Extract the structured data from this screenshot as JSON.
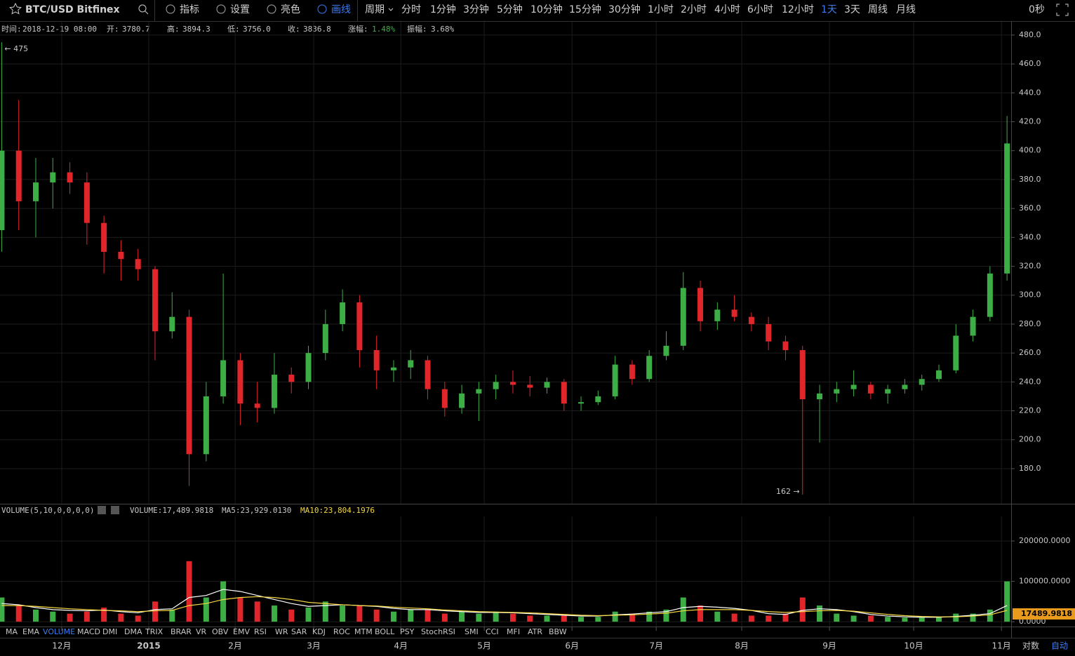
{
  "toolbar": {
    "symbol": "BTC/USD Bitfinex",
    "tools": [
      "指标",
      "设置",
      "亮色",
      "画线"
    ],
    "period_label": "周期",
    "periods": [
      "分时",
      "1分钟",
      "3分钟",
      "5分钟",
      "10分钟",
      "15分钟",
      "30分钟",
      "1小时",
      "2小时",
      "4小时",
      "6小时",
      "12小时",
      "1天",
      "3天",
      "周线",
      "月线"
    ],
    "active_period": "1天",
    "countdown": "0秒"
  },
  "info": [
    {
      "label": "时间:",
      "value": "2018-12-19 08:00"
    },
    {
      "label": "开:",
      "value": "3780.7"
    },
    {
      "label": "高:",
      "value": "3894.3"
    },
    {
      "label": "低:",
      "value": "3756.0"
    },
    {
      "label": "收:",
      "value": "3836.8"
    },
    {
      "label": "涨幅:",
      "value": "1.48%"
    },
    {
      "label": "振幅:",
      "value": "3.68%"
    }
  ],
  "chart_data": {
    "type": "candlestick",
    "up_color": "#3dae45",
    "down_color": "#e0262b",
    "grid": true,
    "categories": [
      null,
      null,
      null,
      null,
      null,
      null,
      null,
      null,
      null,
      null,
      null,
      null,
      null,
      null,
      null,
      null,
      null,
      null,
      null,
      null,
      null,
      null,
      null,
      null,
      null,
      null,
      null,
      null,
      null,
      null,
      null,
      null,
      null,
      null,
      null,
      null,
      null,
      null,
      null,
      null,
      null,
      null,
      null,
      null,
      null,
      null,
      null,
      null,
      null,
      null,
      null,
      null,
      null,
      null,
      null,
      null,
      null,
      null,
      null,
      null
    ],
    "open": [
      345,
      400,
      365,
      378,
      385,
      378,
      350,
      330,
      325,
      318,
      275,
      285,
      190,
      230,
      255,
      225,
      222,
      245,
      240,
      260,
      280,
      295,
      262,
      248,
      250,
      255,
      235,
      222,
      232,
      235,
      240,
      238,
      236,
      240,
      225,
      226,
      230,
      252,
      242,
      258,
      265,
      305,
      282,
      290,
      285,
      280,
      268,
      262,
      228,
      232,
      235,
      238,
      232,
      235,
      238,
      242,
      248,
      272,
      285,
      315
    ],
    "high": [
      475,
      435,
      395,
      395,
      392,
      385,
      355,
      338,
      332,
      320,
      302,
      290,
      240,
      315,
      260,
      240,
      260,
      250,
      265,
      290,
      304,
      300,
      272,
      255,
      262,
      258,
      240,
      238,
      240,
      245,
      248,
      244,
      243,
      242,
      230,
      234,
      258,
      255,
      262,
      275,
      316,
      310,
      295,
      300,
      288,
      285,
      272,
      265,
      238,
      240,
      248,
      240,
      238,
      242,
      245,
      252,
      280,
      290,
      320,
      424
    ],
    "low": [
      330,
      345,
      340,
      360,
      370,
      335,
      315,
      310,
      310,
      255,
      270,
      168,
      185,
      225,
      210,
      212,
      218,
      232,
      235,
      255,
      275,
      250,
      235,
      240,
      242,
      228,
      216,
      218,
      213,
      228,
      232,
      230,
      232,
      220,
      220,
      224,
      228,
      238,
      240,
      255,
      262,
      275,
      276,
      282,
      275,
      262,
      255,
      162,
      198,
      226,
      230,
      228,
      225,
      232,
      234,
      240,
      246,
      268,
      282,
      310
    ],
    "close": [
      400,
      365,
      378,
      385,
      378,
      350,
      330,
      325,
      318,
      275,
      285,
      190,
      230,
      255,
      225,
      222,
      245,
      240,
      260,
      280,
      295,
      262,
      248,
      250,
      255,
      235,
      222,
      232,
      235,
      240,
      238,
      236,
      240,
      225,
      226,
      230,
      252,
      242,
      258,
      265,
      305,
      282,
      290,
      285,
      280,
      268,
      262,
      228,
      232,
      235,
      238,
      232,
      235,
      238,
      242,
      248,
      272,
      285,
      315,
      405
    ],
    "xlim": [
      -0.1,
      59.2
    ],
    "xticks": [
      {
        "value": 3.52,
        "label": "12月"
      },
      {
        "value": 8.63,
        "label": "2015"
      },
      {
        "value": 13.7,
        "label": "2月"
      },
      {
        "value": 18.31,
        "label": "3月"
      },
      {
        "value": 23.42,
        "label": "4月"
      },
      {
        "value": 28.32,
        "label": "5月"
      },
      {
        "value": 33.47,
        "label": "6月"
      },
      {
        "value": 38.41,
        "label": "7月"
      },
      {
        "value": 43.43,
        "label": "8月"
      },
      {
        "value": 48.58,
        "label": "9月"
      },
      {
        "value": 53.52,
        "label": "10月"
      },
      {
        "value": 58.67,
        "label": "11月"
      }
    ],
    "ylim": [
      155.7,
      488.7
    ],
    "yticks": [
      {
        "value": 180,
        "label": "180.0"
      },
      {
        "value": 200,
        "label": "200.0"
      },
      {
        "value": 220,
        "label": "220.0"
      },
      {
        "value": 240,
        "label": "240.0"
      },
      {
        "value": 260,
        "label": "260.0"
      },
      {
        "value": 280,
        "label": "280.0"
      },
      {
        "value": 300,
        "label": "300.0"
      },
      {
        "value": 320,
        "label": "320.0"
      },
      {
        "value": 340,
        "label": "340.0"
      },
      {
        "value": 360,
        "label": "360.0"
      },
      {
        "value": 380,
        "label": "380.0"
      },
      {
        "value": 400,
        "label": "400.0"
      },
      {
        "value": 420,
        "label": "420.0"
      },
      {
        "value": 440,
        "label": "440.0"
      },
      {
        "value": 460,
        "label": "460.0"
      },
      {
        "value": 480,
        "label": "480.0"
      }
    ],
    "annotations": {
      "high": "← 475",
      "low": "162 →"
    }
  },
  "volume_chart": {
    "type": "bar",
    "header": "VOLUME(5,10,0,0,0,0)",
    "current": "VOLUME:17,489.9818",
    "ma5_label": "MA5:23,929.0130",
    "ma10_label": "MA10:23,804.1976",
    "last_label": "17489.9818",
    "values": [
      60000,
      40000,
      30000,
      25000,
      20000,
      25000,
      35000,
      20000,
      15000,
      50000,
      30000,
      150000,
      60000,
      100000,
      60000,
      50000,
      40000,
      30000,
      35000,
      50000,
      40000,
      40000,
      30000,
      25000,
      30000,
      30000,
      20000,
      25000,
      20000,
      25000,
      20000,
      15000,
      15000,
      15000,
      12000,
      12000,
      25000,
      20000,
      25000,
      30000,
      60000,
      40000,
      25000,
      20000,
      15000,
      15000,
      20000,
      60000,
      40000,
      20000,
      15000,
      15000,
      12000,
      10000,
      10000,
      12000,
      20000,
      20000,
      30000,
      100000
    ],
    "series": [
      {
        "name": "MA5",
        "color": "#ffffff",
        "values": [
          45000,
          42000,
          35000,
          30000,
          28000,
          27000,
          29000,
          25000,
          22000,
          30000,
          32000,
          60000,
          65000,
          80000,
          75000,
          65000,
          55000,
          45000,
          38000,
          40000,
          42000,
          40000,
          38000,
          33000,
          30000,
          30000,
          27000,
          25000,
          23000,
          23000,
          22000,
          20000,
          18000,
          16000,
          14000,
          14000,
          17000,
          19000,
          22000,
          25000,
          35000,
          38000,
          36000,
          33000,
          28000,
          20000,
          18000,
          28000,
          32000,
          30000,
          25000,
          18000,
          14000,
          12000,
          11000,
          11000,
          13000,
          16000,
          20000,
          40000
        ]
      },
      {
        "name": "MA10",
        "color": "#f5d742",
        "values": [
          40000,
          40000,
          38000,
          35000,
          32000,
          30000,
          28000,
          27000,
          25000,
          27000,
          28000,
          40000,
          45000,
          55000,
          60000,
          62000,
          60000,
          55000,
          48000,
          45000,
          42000,
          40000,
          39000,
          36000,
          34000,
          32000,
          29000,
          27000,
          25000,
          24000,
          23000,
          22000,
          20000,
          18000,
          16000,
          15000,
          16000,
          17000,
          19000,
          21000,
          27000,
          30000,
          30000,
          30000,
          28000,
          25000,
          23000,
          25000,
          27000,
          28000,
          26000,
          22000,
          18000,
          15000,
          13000,
          12000,
          12000,
          14000,
          17000,
          28000
        ]
      }
    ],
    "ylim": [
      -12000,
      261000
    ],
    "yticks": [
      {
        "value": 0,
        "label": "0.0000"
      },
      {
        "value": 100000,
        "label": "100000.0000"
      },
      {
        "value": 200000,
        "label": "200000.0000"
      }
    ]
  },
  "indicators": {
    "items": [
      "MA",
      "EMA",
      "VOLUME",
      "MACD",
      "DMI",
      "DMA",
      "TRIX",
      "BRAR",
      "VR",
      "OBV",
      "EMV",
      "RSI",
      "WR",
      "SAR",
      "KDJ",
      "ROC",
      "MTM",
      "BOLL",
      "PSY",
      "StochRSI",
      "SMI",
      "CCI",
      "MFI",
      "ATR",
      "BBW"
    ],
    "active": "VOLUME"
  },
  "footer": {
    "log": "对数",
    "auto": "自动"
  }
}
